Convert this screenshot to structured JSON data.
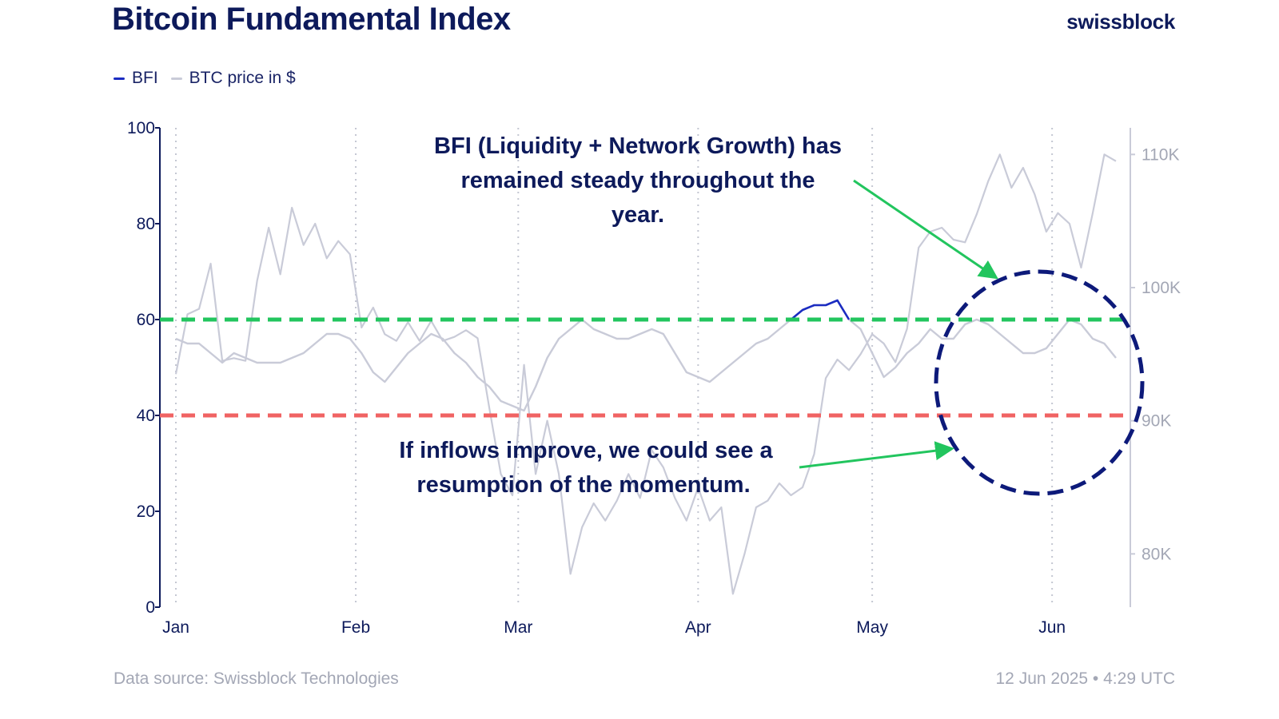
{
  "header": {
    "title": "Bitcoin Fundamental Index",
    "brand": "swissblock"
  },
  "legend": [
    {
      "label": "BFI",
      "color": "#1b2cc1"
    },
    {
      "label": "BTC price in $",
      "color": "#c9cbd8"
    }
  ],
  "footer": {
    "source": "Data source: Swissblock Technologies",
    "timestamp": "12 Jun 2025 • 4:29 UTC"
  },
  "annotations": {
    "top": [
      "BFI (Liquidity + Network Growth) has",
      "remained steady throughout the",
      "year."
    ],
    "bottom": [
      "If inflows improve, we could see a",
      "resumption of the momentum."
    ]
  },
  "colors": {
    "bfi": "#1b2cc1",
    "btc": "#c9cbd8",
    "green_line": "#22c55e",
    "red_line": "#f06363",
    "circle": "#0d1a7a",
    "arrow": "#22c55e"
  },
  "chart_data": {
    "type": "line",
    "x_range": [
      "2025-01-01",
      "2025-06-12"
    ],
    "x_ticks": [
      "Jan",
      "Feb",
      "Mar",
      "Apr",
      "May",
      "Jun"
    ],
    "y_left": {
      "range": [
        0,
        100
      ],
      "ticks": [
        "0",
        "20",
        "40",
        "60",
        "80",
        "100"
      ]
    },
    "y_right": {
      "range": [
        76000,
        112000
      ],
      "ticks": [
        "80K",
        "90K",
        "100K",
        "110K"
      ]
    },
    "thresholds": [
      {
        "value": 60,
        "color": "#22c55e",
        "style": "dashed"
      },
      {
        "value": 40,
        "color": "#f06363",
        "style": "dashed"
      }
    ],
    "grid": "vertical dotted lines at month starts",
    "series": [
      {
        "name": "BFI",
        "axis": "left",
        "points": [
          [
            "2025-01-01",
            56
          ],
          [
            "2025-01-03",
            55
          ],
          [
            "2025-01-05",
            55
          ],
          [
            "2025-01-07",
            53
          ],
          [
            "2025-01-09",
            51
          ],
          [
            "2025-01-11",
            53
          ],
          [
            "2025-01-13",
            52
          ],
          [
            "2025-01-15",
            51
          ],
          [
            "2025-01-17",
            51
          ],
          [
            "2025-01-19",
            51
          ],
          [
            "2025-01-21",
            52
          ],
          [
            "2025-01-23",
            53
          ],
          [
            "2025-01-25",
            55
          ],
          [
            "2025-01-27",
            57
          ],
          [
            "2025-01-29",
            57
          ],
          [
            "2025-01-31",
            56
          ],
          [
            "2025-02-02",
            53
          ],
          [
            "2025-02-04",
            49
          ],
          [
            "2025-02-06",
            47
          ],
          [
            "2025-02-08",
            50
          ],
          [
            "2025-02-10",
            53
          ],
          [
            "2025-02-12",
            55
          ],
          [
            "2025-02-14",
            57
          ],
          [
            "2025-02-16",
            56
          ],
          [
            "2025-02-18",
            53
          ],
          [
            "2025-02-20",
            51
          ],
          [
            "2025-02-22",
            48
          ],
          [
            "2025-02-24",
            46
          ],
          [
            "2025-02-26",
            43
          ],
          [
            "2025-02-28",
            42
          ],
          [
            "2025-03-02",
            41
          ],
          [
            "2025-03-04",
            46
          ],
          [
            "2025-03-06",
            52
          ],
          [
            "2025-03-08",
            56
          ],
          [
            "2025-03-10",
            58
          ],
          [
            "2025-03-12",
            60
          ],
          [
            "2025-03-14",
            58
          ],
          [
            "2025-03-16",
            57
          ],
          [
            "2025-03-18",
            56
          ],
          [
            "2025-03-20",
            56
          ],
          [
            "2025-03-22",
            57
          ],
          [
            "2025-03-24",
            58
          ],
          [
            "2025-03-26",
            57
          ],
          [
            "2025-03-28",
            53
          ],
          [
            "2025-03-30",
            49
          ],
          [
            "2025-04-01",
            48
          ],
          [
            "2025-04-03",
            47
          ],
          [
            "2025-04-05",
            49
          ],
          [
            "2025-04-07",
            51
          ],
          [
            "2025-04-09",
            53
          ],
          [
            "2025-04-11",
            55
          ],
          [
            "2025-04-13",
            56
          ],
          [
            "2025-04-15",
            58
          ],
          [
            "2025-04-17",
            60
          ],
          [
            "2025-04-19",
            62
          ],
          [
            "2025-04-21",
            63
          ],
          [
            "2025-04-23",
            63
          ],
          [
            "2025-04-25",
            64
          ],
          [
            "2025-04-27",
            60
          ],
          [
            "2025-04-29",
            58
          ],
          [
            "2025-05-01",
            53
          ],
          [
            "2025-05-03",
            48
          ],
          [
            "2025-05-05",
            50
          ],
          [
            "2025-05-07",
            53
          ],
          [
            "2025-05-09",
            55
          ],
          [
            "2025-05-11",
            58
          ],
          [
            "2025-05-13",
            56
          ],
          [
            "2025-05-15",
            56
          ],
          [
            "2025-05-17",
            59
          ],
          [
            "2025-05-19",
            60
          ],
          [
            "2025-05-21",
            59
          ],
          [
            "2025-05-23",
            57
          ],
          [
            "2025-05-25",
            55
          ],
          [
            "2025-05-27",
            53
          ],
          [
            "2025-05-29",
            53
          ],
          [
            "2025-05-31",
            54
          ],
          [
            "2025-06-02",
            57
          ],
          [
            "2025-06-04",
            60
          ],
          [
            "2025-06-06",
            59
          ],
          [
            "2025-06-08",
            56
          ],
          [
            "2025-06-10",
            55
          ],
          [
            "2025-06-12",
            52
          ]
        ]
      },
      {
        "name": "BTC price in $",
        "axis": "right",
        "points": [
          [
            "2025-01-01",
            93500
          ],
          [
            "2025-01-03",
            98000
          ],
          [
            "2025-01-05",
            98400
          ],
          [
            "2025-01-07",
            101800
          ],
          [
            "2025-01-09",
            94500
          ],
          [
            "2025-01-11",
            94700
          ],
          [
            "2025-01-13",
            94500
          ],
          [
            "2025-01-15",
            100500
          ],
          [
            "2025-01-17",
            104500
          ],
          [
            "2025-01-19",
            101000
          ],
          [
            "2025-01-21",
            106000
          ],
          [
            "2025-01-23",
            103200
          ],
          [
            "2025-01-25",
            104800
          ],
          [
            "2025-01-27",
            102200
          ],
          [
            "2025-01-29",
            103500
          ],
          [
            "2025-01-31",
            102500
          ],
          [
            "2025-02-02",
            97000
          ],
          [
            "2025-02-04",
            98500
          ],
          [
            "2025-02-06",
            96500
          ],
          [
            "2025-02-08",
            96000
          ],
          [
            "2025-02-10",
            97400
          ],
          [
            "2025-02-12",
            96000
          ],
          [
            "2025-02-14",
            97500
          ],
          [
            "2025-02-16",
            96000
          ],
          [
            "2025-02-18",
            96300
          ],
          [
            "2025-02-20",
            96800
          ],
          [
            "2025-02-22",
            96200
          ],
          [
            "2025-02-24",
            91000
          ],
          [
            "2025-02-26",
            86000
          ],
          [
            "2025-02-28",
            84400
          ],
          [
            "2025-03-02",
            94200
          ],
          [
            "2025-03-04",
            86000
          ],
          [
            "2025-03-06",
            90000
          ],
          [
            "2025-03-08",
            86000
          ],
          [
            "2025-03-10",
            78500
          ],
          [
            "2025-03-12",
            82000
          ],
          [
            "2025-03-14",
            83800
          ],
          [
            "2025-03-16",
            82500
          ],
          [
            "2025-03-18",
            84000
          ],
          [
            "2025-03-20",
            86000
          ],
          [
            "2025-03-22",
            84200
          ],
          [
            "2025-03-24",
            87800
          ],
          [
            "2025-03-26",
            86500
          ],
          [
            "2025-03-28",
            84200
          ],
          [
            "2025-03-30",
            82500
          ],
          [
            "2025-04-01",
            85000
          ],
          [
            "2025-04-03",
            82500
          ],
          [
            "2025-04-05",
            83500
          ],
          [
            "2025-04-07",
            77000
          ],
          [
            "2025-04-09",
            80000
          ],
          [
            "2025-04-11",
            83500
          ],
          [
            "2025-04-13",
            84000
          ],
          [
            "2025-04-15",
            85300
          ],
          [
            "2025-04-17",
            84400
          ],
          [
            "2025-04-19",
            85000
          ],
          [
            "2025-04-21",
            87500
          ],
          [
            "2025-04-23",
            93200
          ],
          [
            "2025-04-25",
            94600
          ],
          [
            "2025-04-27",
            93800
          ],
          [
            "2025-04-29",
            95000
          ],
          [
            "2025-05-01",
            96500
          ],
          [
            "2025-05-03",
            95800
          ],
          [
            "2025-05-05",
            94400
          ],
          [
            "2025-05-07",
            96900
          ],
          [
            "2025-05-09",
            103000
          ],
          [
            "2025-05-11",
            104200
          ],
          [
            "2025-05-13",
            104500
          ],
          [
            "2025-05-15",
            103600
          ],
          [
            "2025-05-17",
            103400
          ],
          [
            "2025-05-19",
            105500
          ],
          [
            "2025-05-21",
            108000
          ],
          [
            "2025-05-23",
            110000
          ],
          [
            "2025-05-25",
            107500
          ],
          [
            "2025-05-27",
            109000
          ],
          [
            "2025-05-29",
            107000
          ],
          [
            "2025-05-31",
            104200
          ],
          [
            "2025-06-02",
            105600
          ],
          [
            "2025-06-04",
            104800
          ],
          [
            "2025-06-06",
            101500
          ],
          [
            "2025-06-08",
            105600
          ],
          [
            "2025-06-10",
            110000
          ],
          [
            "2025-06-12",
            109500
          ]
        ]
      }
    ]
  }
}
